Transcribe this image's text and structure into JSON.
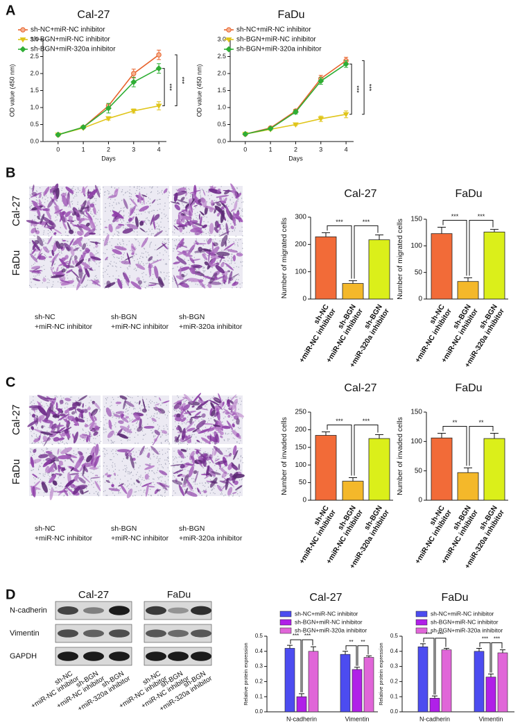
{
  "panel_letters": [
    "A",
    "B",
    "C",
    "D"
  ],
  "panel_b": {
    "rows": [
      "Cal-27",
      "FaDu"
    ],
    "columns": [
      [
        "sh-NC",
        "+miR-NC inhibitor"
      ],
      [
        "sh-BGN",
        "+miR-NC inhibitor"
      ],
      [
        "sh-BGN",
        "+miR-320a inhibitor"
      ]
    ]
  },
  "panel_c": {
    "rows": [
      "Cal-27",
      "FaDu"
    ],
    "columns": [
      [
        "sh-NC",
        "+miR-NC inhibitor"
      ],
      [
        "sh-BGN",
        "+miR-NC inhibitor"
      ],
      [
        "sh-BGN",
        "+miR-320a inhibitor"
      ]
    ]
  },
  "panel_d": {
    "proteins": [
      "N-cadherin",
      "Vimentin",
      "GAPDH"
    ],
    "blots": [
      {
        "title": "Cal-27",
        "lanes": [
          [
            "sh-NC",
            "+miR-NC inhibitor"
          ],
          [
            "sh-BGN",
            "+miR-NC inhibitor"
          ],
          [
            "sh-BGN",
            "+miR-320a inhibitor"
          ]
        ]
      },
      {
        "title": "FaDu",
        "lanes": [
          [
            "sh-NC",
            "+miR-NC inhibitor"
          ],
          [
            "sh-BGN",
            "+miR-NC inhibitor"
          ],
          [
            "sh-BGN",
            "+miR-320a inhibitor"
          ]
        ]
      }
    ]
  },
  "chart_data": [
    {
      "type": "line",
      "title": "Cal-27",
      "x_label": "Days",
      "y_label": "OD value (450 nm)",
      "x": [
        0,
        1,
        2,
        3,
        4
      ],
      "xlim": [
        -0.6,
        4.3
      ],
      "xticks": [
        0,
        1,
        2,
        3,
        4
      ],
      "ylim": [
        0,
        3
      ],
      "yticks": [
        {
          "value": 0,
          "label": "0.0"
        },
        0.5,
        {
          "value": 1,
          "label": "1.0"
        },
        1.5,
        {
          "value": 2,
          "label": "2.0"
        },
        2.5,
        {
          "value": 3,
          "label": "3.0"
        }
      ],
      "series": [
        {
          "name": "sh-NC+miR-NC inhibitor",
          "color": "#e8632c",
          "values": [
            0.2,
            0.42,
            1.05,
            2.0,
            2.55
          ],
          "errors": [
            0.02,
            0.03,
            0.07,
            0.13,
            0.14
          ]
        },
        {
          "name": "sh-BGN+miR-NC inhibitor",
          "color": "#e0c51a",
          "values": [
            0.2,
            0.4,
            0.68,
            0.9,
            1.05
          ],
          "errors": [
            0.02,
            0.02,
            0.05,
            0.06,
            0.12
          ]
        },
        {
          "name": "sh-BGN+miR-320a inhibitor",
          "color": "#2fae35",
          "values": [
            0.2,
            0.42,
            0.98,
            1.75,
            2.15
          ],
          "errors": [
            0.02,
            0.03,
            0.14,
            0.14,
            0.14
          ]
        }
      ],
      "annotations": [
        "***",
        "***"
      ]
    },
    {
      "type": "line",
      "title": "FaDu",
      "x_label": "Days",
      "y_label": "OD value (450 nm)",
      "x": [
        0,
        1,
        2,
        3,
        4
      ],
      "xlim": [
        -0.6,
        4.3
      ],
      "xticks": [
        0,
        1,
        2,
        3,
        4
      ],
      "ylim": [
        0,
        3
      ],
      "yticks": [
        {
          "value": 0,
          "label": "0.0"
        },
        0.5,
        {
          "value": 1,
          "label": "1.0"
        },
        1.5,
        {
          "value": 2,
          "label": "2.0"
        },
        2.5,
        {
          "value": 3,
          "label": "3.0"
        }
      ],
      "series": [
        {
          "name": "sh-NC+miR-NC inhibitor",
          "color": "#e8632c",
          "values": [
            0.22,
            0.4,
            0.9,
            1.85,
            2.38
          ],
          "errors": [
            0.02,
            0.03,
            0.05,
            0.1,
            0.1
          ]
        },
        {
          "name": "sh-BGN+miR-NC inhibitor",
          "color": "#e0c51a",
          "values": [
            0.22,
            0.36,
            0.5,
            0.67,
            0.8
          ],
          "errors": [
            0.02,
            0.03,
            0.03,
            0.08,
            0.1
          ]
        },
        {
          "name": "sh-BGN+miR-320a inhibitor",
          "color": "#2fae35",
          "values": [
            0.22,
            0.38,
            0.87,
            1.78,
            2.28
          ],
          "errors": [
            0.02,
            0.02,
            0.06,
            0.1,
            0.1
          ]
        }
      ],
      "annotations": [
        "***",
        "***"
      ]
    },
    {
      "type": "bar",
      "title": "Cal-27",
      "y_label": "Number of migrated cells",
      "categories": [
        [
          "sh-NC",
          "+miR-NC inhibitor"
        ],
        [
          "sh-BGN",
          "+miR-NC inhibitor"
        ],
        [
          "sh-BGN",
          "+miR-320a inhibitor"
        ]
      ],
      "values": [
        228,
        57,
        217
      ],
      "errors": [
        15,
        10,
        18
      ],
      "colors": [
        "#f26b38",
        "#f4b82a",
        "#dbef1a"
      ],
      "ylim": [
        0,
        300
      ],
      "yticks": [
        0,
        100,
        200,
        300
      ],
      "annotations": [
        "***",
        "***"
      ]
    },
    {
      "type": "bar",
      "title": "FaDu",
      "y_label": "Number of migrated cells",
      "categories": [
        [
          "sh-NC",
          "+miR-NC inhibitor"
        ],
        [
          "sh-BGN",
          "+miR-NC inhibitor"
        ],
        [
          "sh-BGN",
          "+miR-320a inhibitor"
        ]
      ],
      "values": [
        123,
        33,
        126
      ],
      "errors": [
        12,
        7,
        5
      ],
      "colors": [
        "#f26b38",
        "#f4b82a",
        "#dbef1a"
      ],
      "ylim": [
        0,
        150
      ],
      "yticks": [
        0,
        50,
        100,
        150
      ],
      "annotations": [
        "***",
        "***"
      ]
    },
    {
      "type": "bar",
      "title": "Cal-27",
      "y_label": "Number of invaded cells",
      "categories": [
        [
          "sh-NC",
          "+miR-NC inhibitor"
        ],
        [
          "sh-BGN",
          "+miR-NC inhibitor"
        ],
        [
          "sh-BGN",
          "+miR-320a inhibitor"
        ]
      ],
      "values": [
        184,
        54,
        175
      ],
      "errors": [
        10,
        10,
        11
      ],
      "colors": [
        "#f26b38",
        "#f4b82a",
        "#dbef1a"
      ],
      "ylim": [
        0,
        250
      ],
      "yticks": [
        0,
        50,
        100,
        150,
        200,
        250
      ],
      "annotations": [
        "***",
        "***"
      ]
    },
    {
      "type": "bar",
      "title": "FaDu",
      "y_label": "Number of invaded cells",
      "categories": [
        [
          "sh-NC",
          "+miR-NC inhibitor"
        ],
        [
          "sh-BGN",
          "+miR-NC inhibitor"
        ],
        [
          "sh-BGN",
          "+miR-320a inhibitor"
        ]
      ],
      "values": [
        106,
        47,
        105
      ],
      "errors": [
        8,
        8,
        9
      ],
      "colors": [
        "#f26b38",
        "#f4b82a",
        "#dbef1a"
      ],
      "ylim": [
        0,
        150
      ],
      "yticks": [
        0,
        50,
        100,
        150
      ],
      "annotations": [
        "**",
        "**"
      ]
    },
    {
      "type": "grouped_bar",
      "title": "Cal-27",
      "y_label": "Relative protein expression",
      "categories": [
        "N-cadherin",
        "Vimentin"
      ],
      "ylim": [
        0,
        0.5
      ],
      "yticks": [
        {
          "value": 0,
          "label": "0.0"
        },
        0.1,
        0.2,
        0.3,
        0.4,
        0.5
      ],
      "series": [
        {
          "name": "sh-NC+miR-NC inhibitor",
          "color": "#4c4cf0",
          "values": [
            0.42,
            0.38
          ],
          "errors": [
            0.02,
            0.02
          ]
        },
        {
          "name": "sh-BGN+miR-NC inhibitor",
          "color": "#b020e8",
          "values": [
            0.1,
            0.28
          ],
          "errors": [
            0.02,
            0.015
          ]
        },
        {
          "name": "sh-BGN+miR-320a inhibitor",
          "color": "#e066d8",
          "values": [
            0.4,
            0.36
          ],
          "errors": [
            0.03,
            0.01
          ]
        }
      ],
      "annotations": [
        "***",
        "***",
        "**",
        "**"
      ]
    },
    {
      "type": "grouped_bar",
      "title": "FaDu",
      "y_label": "Relative protein expression",
      "categories": [
        "N-cadherin",
        "Vimentin"
      ],
      "ylim": [
        0,
        0.5
      ],
      "yticks": [
        {
          "value": 0,
          "label": "0.0"
        },
        0.1,
        0.2,
        0.3,
        0.4,
        0.5
      ],
      "series": [
        {
          "name": "sh-NC+miR-NC inhibitor",
          "color": "#4c4cf0",
          "values": [
            0.43,
            0.4
          ],
          "errors": [
            0.02,
            0.02
          ]
        },
        {
          "name": "sh-BGN+miR-NC inhibitor",
          "color": "#b020e8",
          "values": [
            0.09,
            0.23
          ],
          "errors": [
            0.015,
            0.02
          ]
        },
        {
          "name": "sh-BGN+miR-320a inhibitor",
          "color": "#e066d8",
          "values": [
            0.41,
            0.39
          ],
          "errors": [
            0.01,
            0.02
          ]
        }
      ],
      "annotations": [
        "***",
        "***",
        "***",
        "***"
      ]
    }
  ]
}
